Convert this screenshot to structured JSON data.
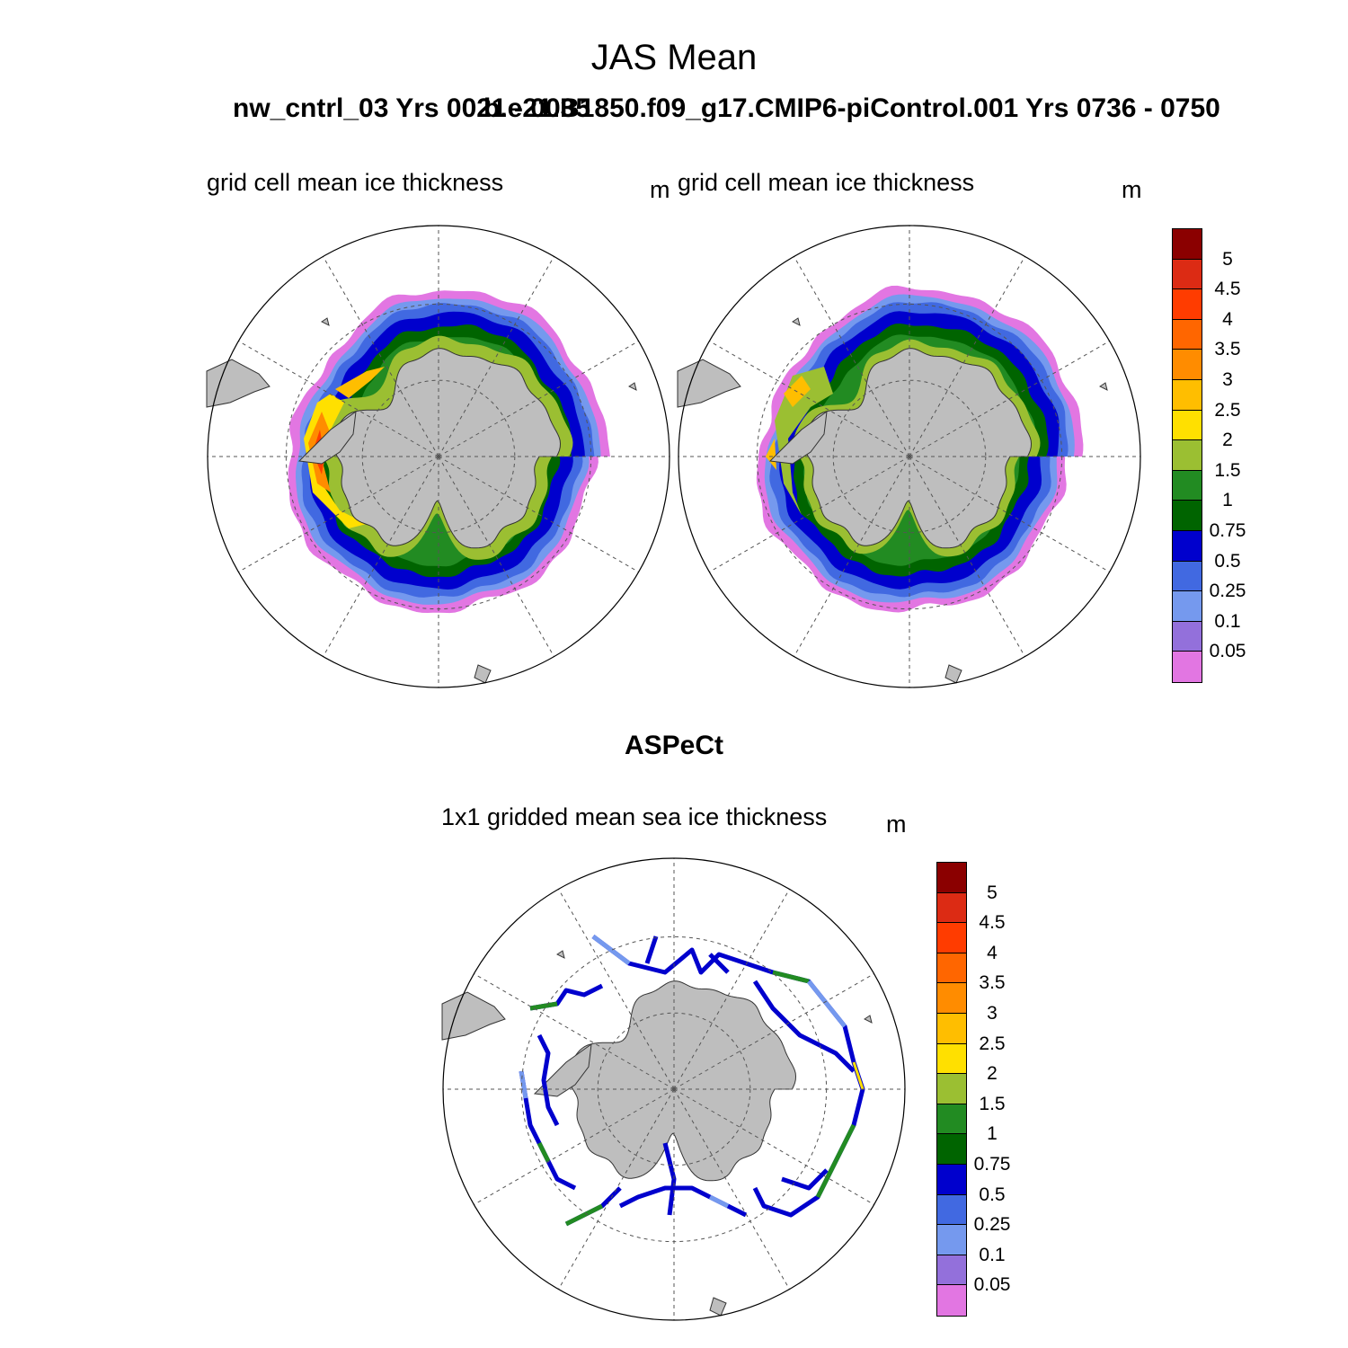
{
  "title": "JAS Mean",
  "case_a_label": "nw_cntrl_03  Yrs 0021 - 0035",
  "case_b_label": "b.e21.B1850.f09_g17.CMIP6-piControl.001  Yrs 0736 - 0750",
  "panels": [
    {
      "subtitle": "grid cell mean ice thickness",
      "units": "m"
    },
    {
      "subtitle": "grid cell mean ice thickness",
      "units": "m"
    }
  ],
  "observation": {
    "title": "ASPeCt",
    "subtitle": "1x1 gridded mean sea ice thickness",
    "units": "m"
  },
  "colorbar": {
    "levels": [
      "5",
      "4.5",
      "4",
      "3.5",
      "3",
      "2.5",
      "2",
      "1.5",
      "1",
      "0.75",
      "0.5",
      "0.25",
      "0.1",
      "0.05"
    ],
    "colors": [
      "#8b0000",
      "#dc2b14",
      "#ff3c00",
      "#ff6600",
      "#ff8c00",
      "#ffbe00",
      "#ffe000",
      "#9bbf32",
      "#228b22",
      "#006400",
      "#0000cd",
      "#4169e1",
      "#7599ee",
      "#9370db",
      "#e276e2"
    ]
  },
  "map_style": {
    "land": "#bebebe",
    "grid_line": "#555555"
  }
}
